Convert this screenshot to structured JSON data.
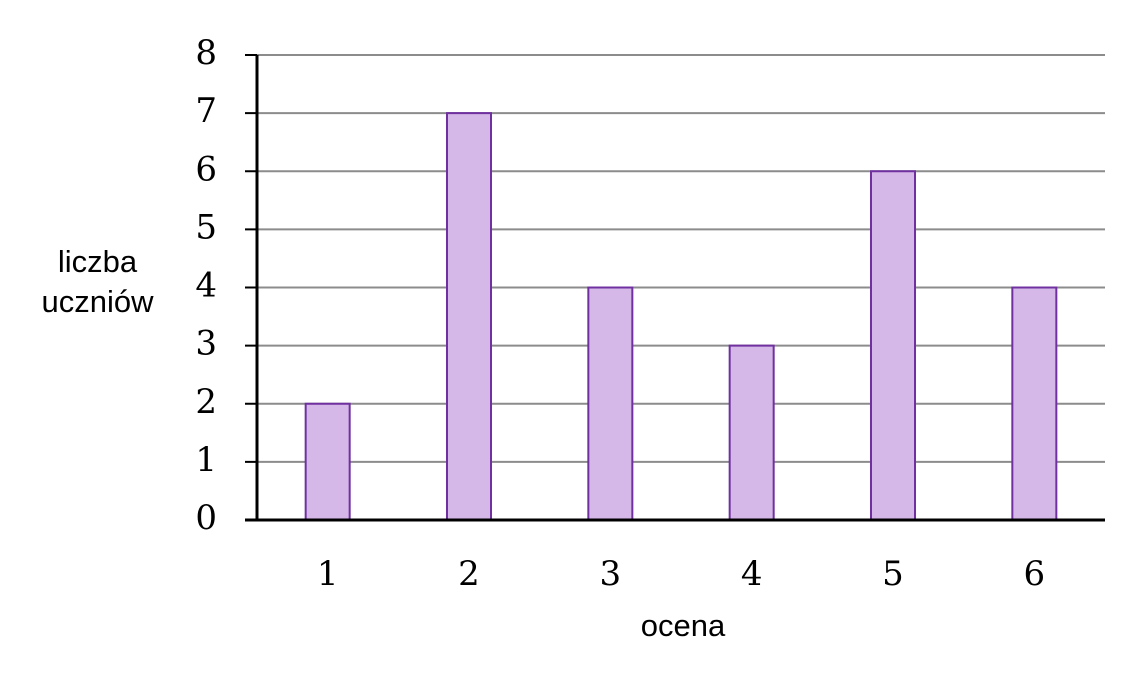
{
  "chart_data": {
    "type": "bar",
    "x_label": "ocena",
    "y_label": "liczba uczniów",
    "categories": [
      "1",
      "2",
      "3",
      "4",
      "5",
      "6"
    ],
    "values": [
      2,
      7,
      4,
      3,
      6,
      4
    ],
    "color": "#d5b8e8",
    "edge_color": "#7030a0",
    "ylim": [
      0,
      8
    ],
    "yticks": [
      0,
      1,
      2,
      3,
      4,
      5,
      6,
      7,
      8
    ],
    "grid": true
  }
}
